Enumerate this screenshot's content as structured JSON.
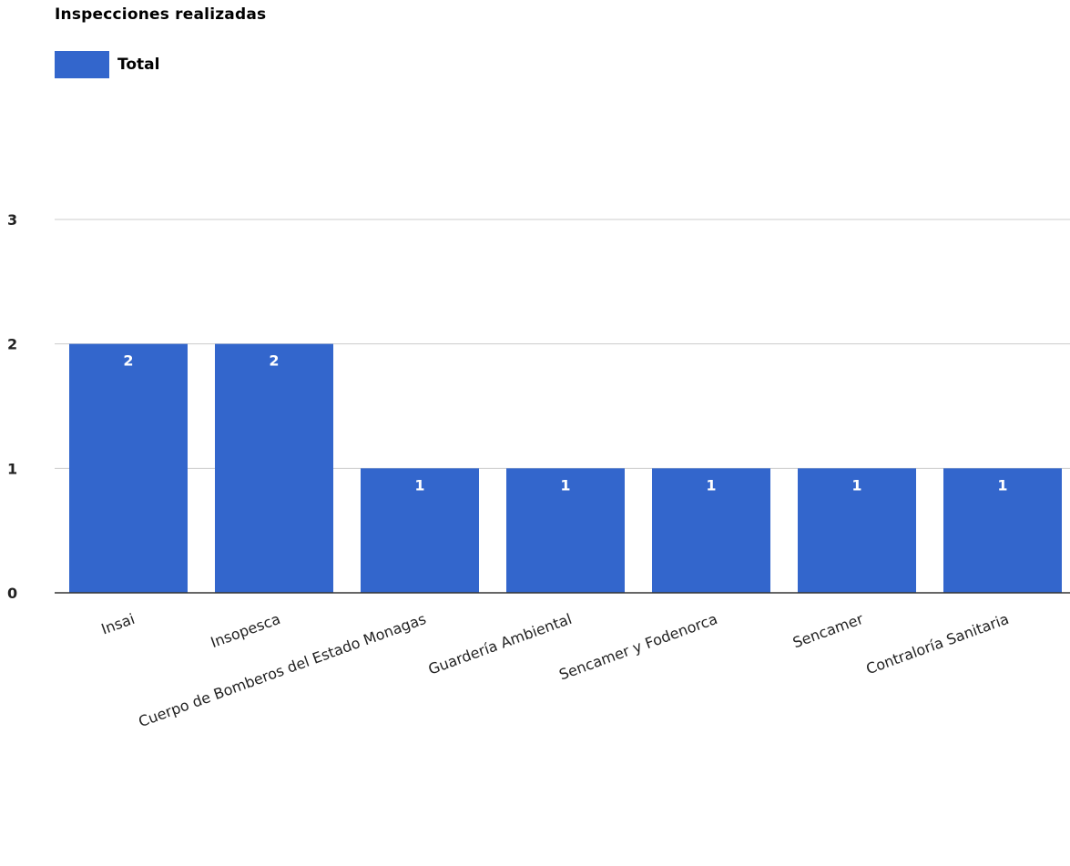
{
  "chart_data": {
    "type": "bar",
    "title": "Inspecciones realizadas",
    "categories": [
      "Insai",
      "Insopesca",
      "Cuerpo de Bomberos del Estado Monagas",
      "Guardería Ambiental",
      "Sencamer y Fodenorca",
      "Sencamer",
      "Contraloría Sanitaria"
    ],
    "series": [
      {
        "name": "Total",
        "values": [
          2,
          2,
          1,
          1,
          1,
          1,
          1
        ],
        "color": "#3366cc"
      }
    ],
    "y_ticks": [
      "0",
      "1",
      "2",
      "3"
    ],
    "ylim": [
      0,
      3
    ],
    "grid": true,
    "legend_position": "top-left",
    "data_labels": true,
    "xlabel": "",
    "ylabel": ""
  }
}
